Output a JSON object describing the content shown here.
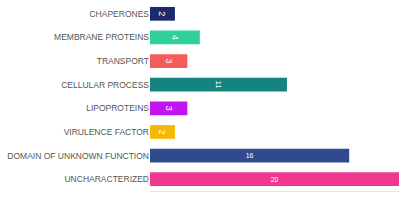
{
  "chart_data": {
    "type": "bar",
    "orientation": "horizontal",
    "categories": [
      "CHAPERONES",
      "MEMBRANE PROTEINS",
      "TRANSPORT",
      "CELLULAR PROCESS",
      "LIPOPROTEINS",
      "VIRULENCE FACTOR",
      "DOMAIN OF UNKNOWN FUNCTION",
      "UNCHARACTERIZED"
    ],
    "values": [
      2,
      4,
      3,
      11,
      3,
      2,
      16,
      20
    ],
    "colors": [
      "#1c2a6b",
      "#2fd09b",
      "#f45b5b",
      "#15837f",
      "#c214f0",
      "#f6b800",
      "#2f4b8e",
      "#f0388e"
    ],
    "xlim": [
      0,
      20
    ],
    "data_labels": true,
    "tick_labels": "y",
    "grid": false
  }
}
